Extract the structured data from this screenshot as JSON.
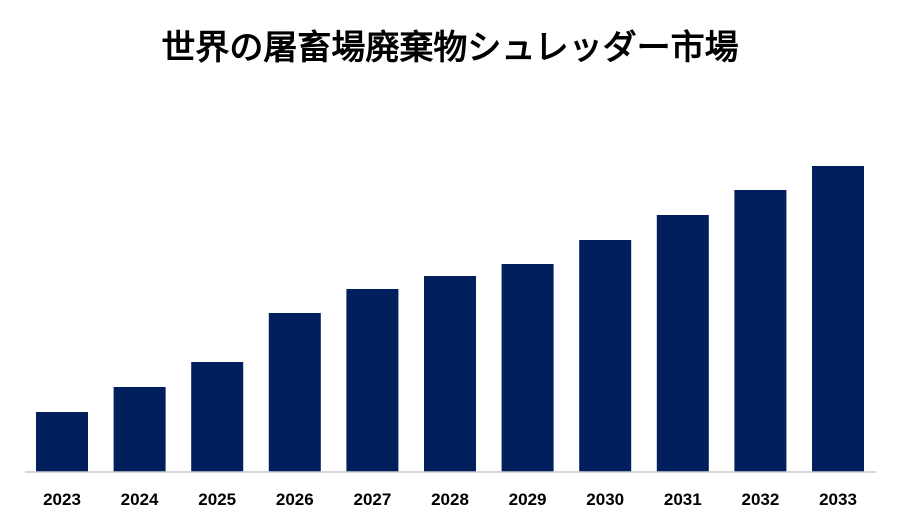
{
  "chart_data": {
    "type": "bar",
    "title": "世界の屠畜場廃棄物シュレッダー市場",
    "categories": [
      "2023",
      "2024",
      "2025",
      "2026",
      "2027",
      "2028",
      "2029",
      "2030",
      "2031",
      "2032",
      "2033"
    ],
    "values": [
      60,
      85,
      110,
      159,
      183,
      196,
      208,
      232,
      257,
      282,
      306
    ],
    "xlabel": "",
    "ylabel": "",
    "ylim": [
      0,
      350
    ],
    "grid": false,
    "bar_color": "#001f5c",
    "axis_color": "#cccccc"
  }
}
